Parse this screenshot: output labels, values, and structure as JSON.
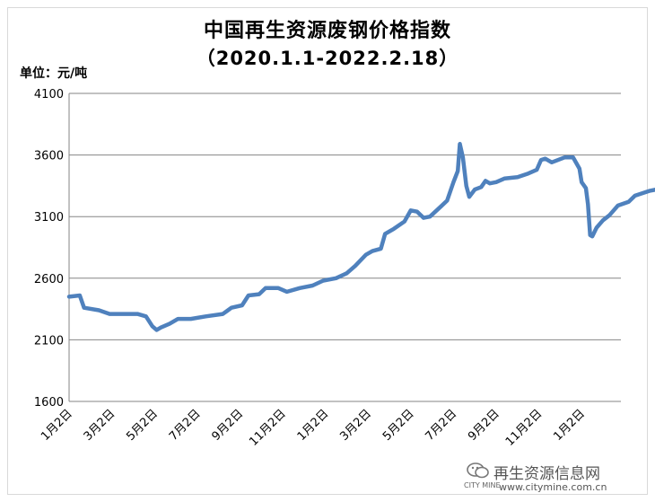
{
  "chart_data": {
    "type": "line",
    "title": "中国再生资源废钢价格指数",
    "subtitle": "（2020.1.1-2022.2.18）",
    "ylabel": "单位：元/吨",
    "ylim": [
      1600,
      4100
    ],
    "yticks": [
      1600,
      2100,
      2600,
      3100,
      3600,
      4100
    ],
    "xticks": [
      "1月2日",
      "3月2日",
      "5月2日",
      "7月2日",
      "9月2日",
      "11月2日",
      "1月2日",
      "3月2日",
      "5月2日",
      "7月2日",
      "9月2日",
      "11月2日",
      "1月2日"
    ],
    "grid": "horizontal",
    "line_color": "#4f81bd",
    "series": [
      {
        "values": [
          [
            0,
            2450
          ],
          [
            0.25,
            2460
          ],
          [
            0.35,
            2360
          ],
          [
            0.7,
            2340
          ],
          [
            0.95,
            2310
          ],
          [
            1.6,
            2310
          ],
          [
            1.8,
            2290
          ],
          [
            1.95,
            2210
          ],
          [
            2.05,
            2180
          ],
          [
            2.15,
            2200
          ],
          [
            2.35,
            2230
          ],
          [
            2.55,
            2270
          ],
          [
            2.85,
            2270
          ],
          [
            3.2,
            2290
          ],
          [
            3.6,
            2310
          ],
          [
            3.8,
            2360
          ],
          [
            4.05,
            2380
          ],
          [
            4.2,
            2460
          ],
          [
            4.45,
            2470
          ],
          [
            4.6,
            2520
          ],
          [
            4.9,
            2520
          ],
          [
            5.1,
            2490
          ],
          [
            5.4,
            2520
          ],
          [
            5.7,
            2540
          ],
          [
            5.95,
            2580
          ],
          [
            6.25,
            2600
          ],
          [
            6.5,
            2640
          ],
          [
            6.7,
            2700
          ],
          [
            6.95,
            2790
          ],
          [
            7.1,
            2820
          ],
          [
            7.3,
            2840
          ],
          [
            7.4,
            2960
          ],
          [
            7.6,
            3000
          ],
          [
            7.85,
            3060
          ],
          [
            8.0,
            3150
          ],
          [
            8.15,
            3140
          ],
          [
            8.3,
            3090
          ],
          [
            8.45,
            3100
          ],
          [
            8.7,
            3180
          ],
          [
            8.85,
            3230
          ],
          [
            9.0,
            3380
          ],
          [
            9.1,
            3470
          ],
          [
            9.15,
            3690
          ],
          [
            9.22,
            3580
          ],
          [
            9.3,
            3350
          ],
          [
            9.37,
            3260
          ],
          [
            9.5,
            3320
          ],
          [
            9.65,
            3340
          ],
          [
            9.75,
            3390
          ],
          [
            9.85,
            3370
          ],
          [
            10.0,
            3380
          ],
          [
            10.2,
            3410
          ],
          [
            10.5,
            3420
          ],
          [
            10.75,
            3450
          ],
          [
            10.95,
            3480
          ],
          [
            11.05,
            3560
          ],
          [
            11.15,
            3570
          ],
          [
            11.3,
            3540
          ],
          [
            11.6,
            3580
          ],
          [
            11.8,
            3580
          ],
          [
            11.95,
            3490
          ],
          [
            12.0,
            3380
          ],
          [
            12.1,
            3330
          ],
          [
            12.15,
            3200
          ],
          [
            12.2,
            2950
          ],
          [
            12.25,
            2940
          ],
          [
            12.35,
            3010
          ],
          [
            12.5,
            3070
          ],
          [
            12.65,
            3110
          ],
          [
            12.85,
            3190
          ],
          [
            13.1,
            3220
          ],
          [
            13.25,
            3270
          ],
          [
            13.6,
            3310
          ],
          [
            13.9,
            3330
          ]
        ]
      }
    ]
  },
  "watermark": {
    "name": "再生资源信息网",
    "url": "www.citymine.com.cn",
    "small_logo_text": "CITY MINE"
  }
}
